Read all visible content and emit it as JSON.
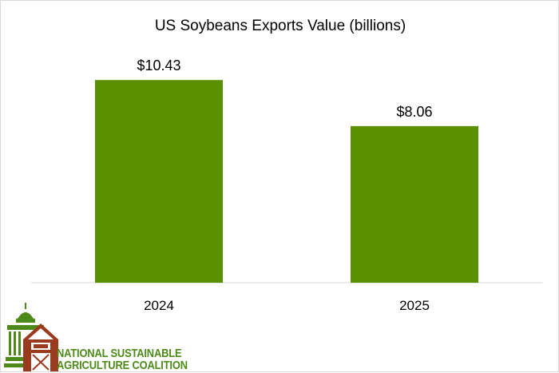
{
  "chart_data": {
    "type": "bar",
    "title": "US Soybeans Exports Value (billions)",
    "categories": [
      "2024",
      "2025"
    ],
    "values": [
      10.43,
      8.06
    ],
    "data_labels": [
      "$10.43",
      "$8.06"
    ],
    "xlabel": "",
    "ylabel": "",
    "ylim": [
      0,
      12
    ],
    "grid": false,
    "legend": "none",
    "bar_color": "#5b9000"
  },
  "logo": {
    "line1": "NATIONAL SUSTAINABLE",
    "line2": "AGRICULTURE COALITION",
    "barn_color": "#9a3a1e",
    "capitol_color": "#4d8a1a"
  }
}
